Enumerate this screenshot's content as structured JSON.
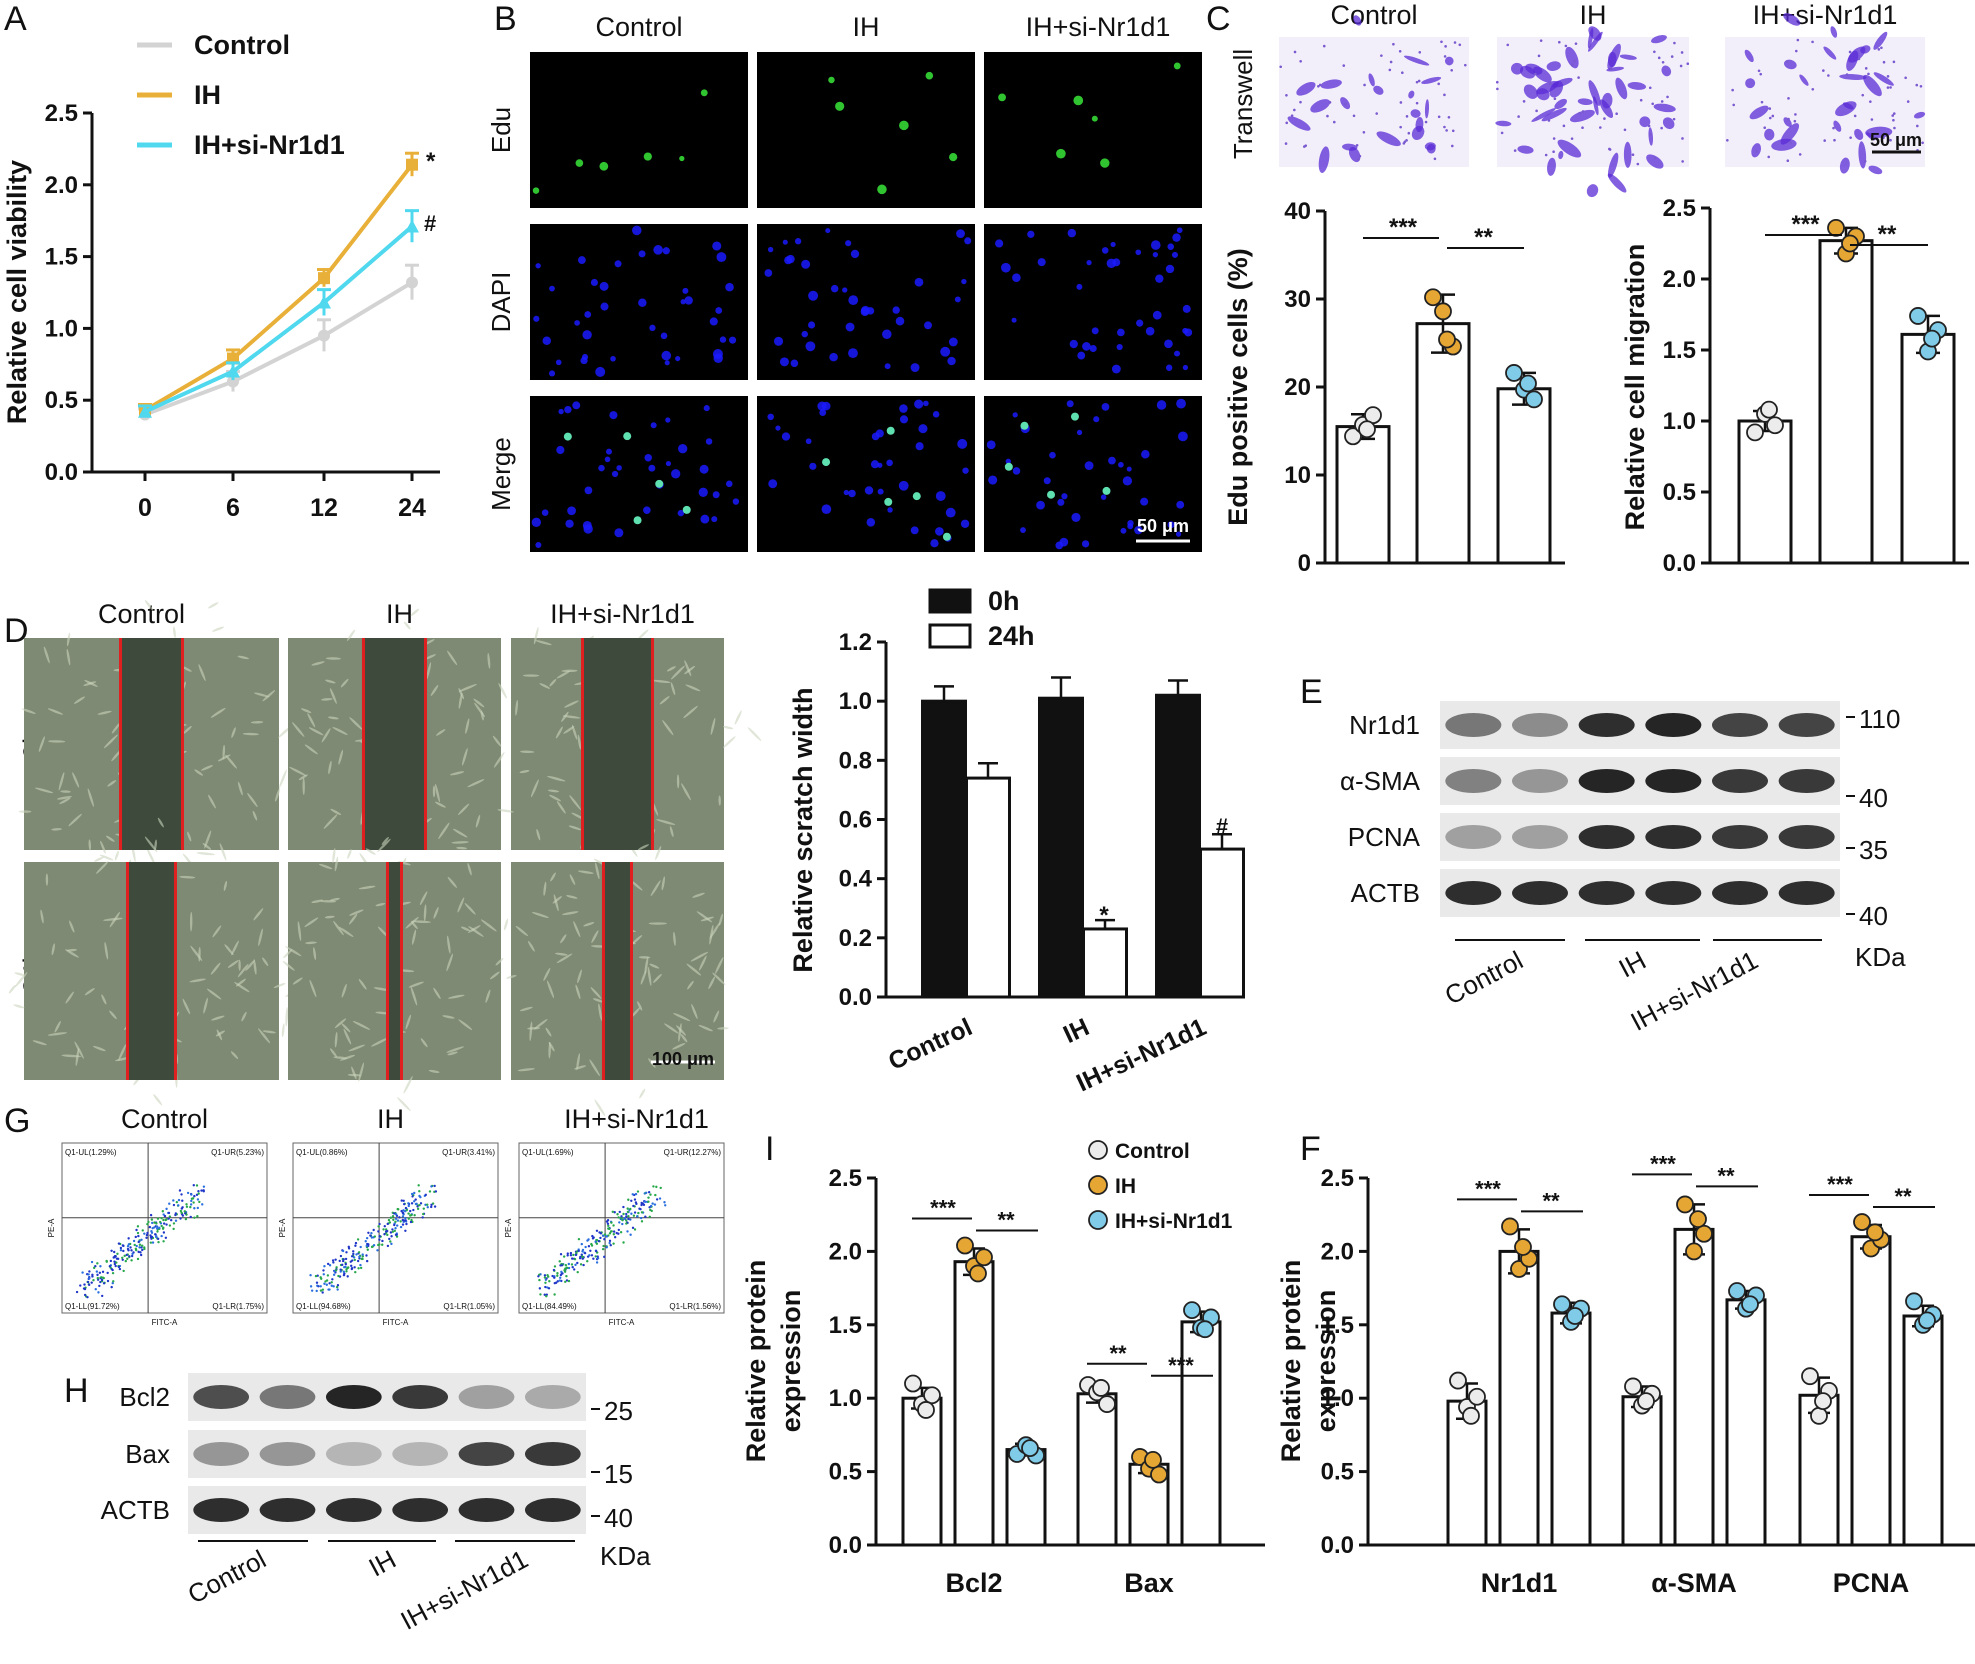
{
  "colors": {
    "control": "#d3d3d3",
    "ih": "#e8b038",
    "si": "#4fd8ee",
    "dot_control": "#ececec",
    "dot_ih": "#e6a634",
    "dot_si": "#7fcbe8",
    "black": "#111111",
    "scratch_red": "#e02020",
    "edu_green": "#39e639",
    "dapi_blue": "#1a1aff"
  },
  "panels": {
    "A": "A",
    "B": "B",
    "C": "C",
    "D": "D",
    "E": "E",
    "F": "F",
    "G": "G",
    "H": "H",
    "I": "I"
  },
  "groups": [
    "Control",
    "IH",
    "IH+si-Nr1d1"
  ],
  "panel_b": {
    "rows": [
      "Edu",
      "DAPI",
      "Merge"
    ],
    "scale": "50 μm"
  },
  "panel_c": {
    "row": "Transwell",
    "scale": "50 μm"
  },
  "panel_d": {
    "rows": [
      "0h",
      "24h"
    ],
    "scale": "100 μm"
  },
  "panel_g": {
    "quad_labels": [
      {
        "ul": "Q1-UL(1.29%)",
        "ur": "Q1-UR(5.23%)",
        "ll": "Q1-LL(91.72%)",
        "lr": "Q1-LR(1.75%)"
      },
      {
        "ul": "Q1-UL(0.86%)",
        "ur": "Q1-UR(3.41%)",
        "ll": "Q1-LL(94.68%)",
        "lr": "Q1-LR(1.05%)"
      },
      {
        "ul": "Q1-UL(1.69%)",
        "ur": "Q1-UR(12.27%)",
        "ll": "Q1-LL(84.49%)",
        "lr": "Q1-LR(1.56%)"
      }
    ],
    "xlabel": "FITC-A",
    "ylabel": "PE-A"
  },
  "panel_e": {
    "proteins": [
      "Nr1d1",
      "α-SMA",
      "PCNA",
      "ACTB"
    ],
    "kda": [
      "110",
      "40",
      "35",
      "40"
    ],
    "kda_unit": "KDa"
  },
  "panel_h": {
    "proteins": [
      "Bcl2",
      "Bax",
      "ACTB"
    ],
    "kda": [
      "25",
      "15",
      "40"
    ],
    "kda_unit": "KDa"
  },
  "chart_data": [
    {
      "panel": "A",
      "type": "line",
      "xlabel": "",
      "ylabel": "Relative cell viability",
      "categories": [
        "0",
        "6",
        "12",
        "24"
      ],
      "ylim": [
        0,
        2.5
      ],
      "yticks": [
        "0.0",
        "0.5",
        "1.0",
        "1.5",
        "2.0",
        "2.5"
      ],
      "series": [
        {
          "name": "Control",
          "values": [
            0.4,
            0.63,
            0.95,
            1.32
          ],
          "errors": [
            0.04,
            0.07,
            0.11,
            0.12
          ]
        },
        {
          "name": "IH",
          "values": [
            0.43,
            0.79,
            1.35,
            2.14
          ],
          "errors": [
            0.04,
            0.06,
            0.06,
            0.08
          ]
        },
        {
          "name": "IH+si-Nr1d1",
          "values": [
            0.42,
            0.7,
            1.18,
            1.71
          ],
          "errors": [
            0.04,
            0.06,
            0.09,
            0.11
          ]
        }
      ],
      "annotations": [
        "*",
        "#"
      ],
      "legend": "top-left"
    },
    {
      "panel": "C1",
      "type": "bar",
      "ylabel": "Edu positive cells (%)",
      "categories": [
        "Control",
        "IH",
        "IH+si-Nr1d1"
      ],
      "values": [
        15.5,
        27.2,
        19.8
      ],
      "errors": [
        1.4,
        3.3,
        1.8
      ],
      "ylim": [
        0,
        40
      ],
      "yticks": [
        "0",
        "10",
        "20",
        "30",
        "40"
      ],
      "points": [
        [
          14.4,
          15.7,
          16.8,
          15.2
        ],
        [
          30.2,
          28.6,
          24.6,
          25.4
        ],
        [
          21.6,
          19.7,
          18.6,
          20.4
        ]
      ],
      "significance": [
        "***",
        "**"
      ]
    },
    {
      "panel": "C2",
      "type": "bar",
      "ylabel": "Relative cell migration",
      "categories": [
        "Control",
        "IH",
        "IH+si-Nr1d1"
      ],
      "values": [
        1.0,
        2.27,
        1.61
      ],
      "errors": [
        0.07,
        0.09,
        0.13
      ],
      "ylim": [
        0,
        2.5
      ],
      "yticks": [
        "0.0",
        "0.5",
        "1.0",
        "1.5",
        "2.0",
        "2.5"
      ],
      "points": [
        [
          0.92,
          1.05,
          0.97,
          1.08
        ],
        [
          2.36,
          2.18,
          2.3,
          2.25
        ],
        [
          1.74,
          1.49,
          1.64,
          1.58
        ]
      ],
      "significance": [
        "***",
        "**"
      ]
    },
    {
      "panel": "D",
      "type": "bar",
      "ylabel": "Relative scratch width",
      "categories": [
        "Control",
        "IH",
        "IH+si-Nr1d1"
      ],
      "ylim": [
        0,
        1.2
      ],
      "yticks": [
        "0.0",
        "0.2",
        "0.4",
        "0.6",
        "0.8",
        "1.0",
        "1.2"
      ],
      "series": [
        {
          "name": "0h",
          "values": [
            1.0,
            1.01,
            1.02
          ],
          "errors": [
            0.05,
            0.07,
            0.05
          ]
        },
        {
          "name": "24h",
          "values": [
            0.74,
            0.23,
            0.5
          ],
          "errors": [
            0.05,
            0.03,
            0.05
          ]
        }
      ],
      "annotations": [
        "*",
        "#"
      ],
      "legend": "top"
    },
    {
      "panel": "I",
      "type": "bar",
      "ylabel": "Relative protein expression",
      "categories": [
        "Bcl2",
        "Bax"
      ],
      "ylim": [
        0,
        2.5
      ],
      "yticks": [
        "0.0",
        "0.5",
        "1.0",
        "1.5",
        "2.0",
        "2.5"
      ],
      "series": [
        {
          "name": "Control",
          "values": [
            1.0,
            1.03
          ],
          "errors": [
            0.07,
            0.06
          ],
          "points": [
            [
              1.1,
              0.96,
              1.02,
              0.92
            ],
            [
              1.09,
              1.04,
              0.96,
              1.07
            ]
          ]
        },
        {
          "name": "IH",
          "values": [
            1.93,
            0.55
          ],
          "errors": [
            0.09,
            0.06
          ],
          "points": [
            [
              2.04,
              1.9,
              1.96,
              1.85
            ],
            [
              0.6,
              0.52,
              0.48,
              0.58
            ]
          ]
        },
        {
          "name": "IH+si-Nr1d1",
          "values": [
            0.65,
            1.52
          ],
          "errors": [
            0.04,
            0.07
          ],
          "points": [
            [
              0.62,
              0.68,
              0.61,
              0.66
            ],
            [
              1.6,
              1.48,
              1.55,
              1.47
            ]
          ]
        }
      ],
      "significance": [
        [
          "***",
          "**"
        ],
        [
          "**",
          "***"
        ]
      ],
      "legend": "top-right"
    },
    {
      "panel": "F",
      "type": "bar",
      "ylabel": "Relative protein expression",
      "categories": [
        "Nr1d1",
        "α-SMA",
        "PCNA"
      ],
      "ylim": [
        0,
        2.5
      ],
      "yticks": [
        "0.0",
        "0.5",
        "1.0",
        "1.5",
        "2.0",
        "2.5"
      ],
      "series": [
        {
          "name": "Control",
          "values": [
            0.98,
            1.01,
            1.02
          ],
          "errors": [
            0.12,
            0.07,
            0.12
          ],
          "points": [
            [
              1.12,
              0.94,
              1.01,
              0.88
            ],
            [
              1.08,
              0.95,
              1.03,
              0.98
            ],
            [
              1.15,
              0.88,
              1.05,
              0.98
            ]
          ]
        },
        {
          "name": "IH",
          "values": [
            2.0,
            2.15,
            2.1
          ],
          "errors": [
            0.15,
            0.17,
            0.08
          ],
          "points": [
            [
              2.17,
              1.88,
              1.95,
              2.03
            ],
            [
              2.32,
              2.0,
              2.12,
              2.22
            ],
            [
              2.2,
              2.02,
              2.08,
              2.13
            ]
          ]
        },
        {
          "name": "IH+si-Nr1d1",
          "values": [
            1.58,
            1.67,
            1.56
          ],
          "errors": [
            0.07,
            0.06,
            0.07
          ],
          "points": [
            [
              1.64,
              1.52,
              1.61,
              1.56
            ],
            [
              1.73,
              1.61,
              1.7,
              1.64
            ],
            [
              1.66,
              1.5,
              1.57,
              1.53
            ]
          ]
        }
      ],
      "significance": [
        [
          "***",
          "**"
        ],
        [
          "***",
          "**"
        ],
        [
          "***",
          "**"
        ]
      ]
    }
  ]
}
